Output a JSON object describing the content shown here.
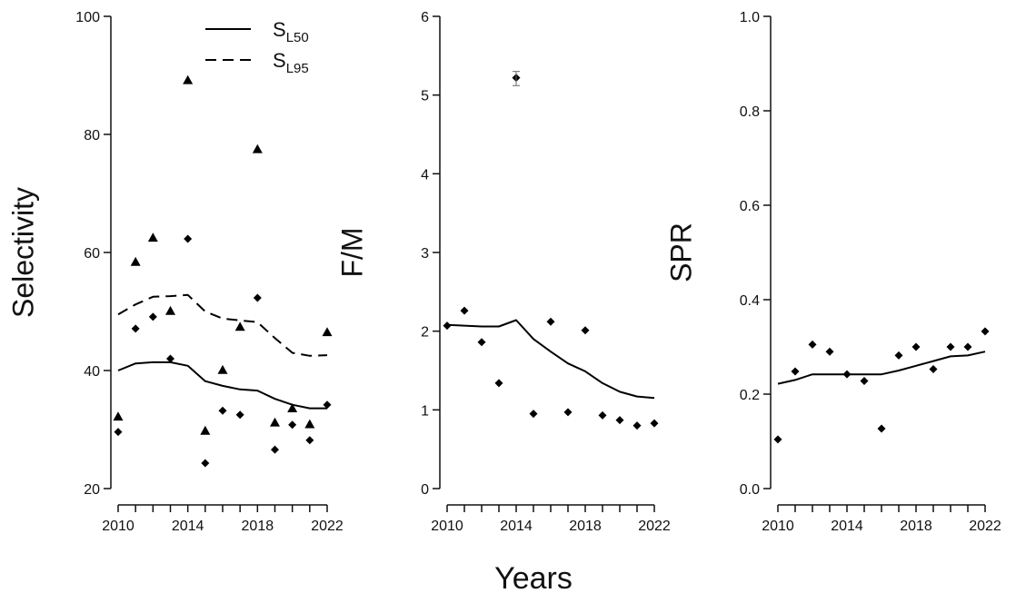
{
  "common": {
    "xlabel": "Years"
  },
  "chart_data": [
    {
      "type": "scatter",
      "ylabel": "Selectivity",
      "xlim": [
        2010,
        2022
      ],
      "ylim": [
        20,
        100
      ],
      "x_ticks": [
        2010,
        2014,
        2018,
        2022
      ],
      "y_ticks": [
        20,
        40,
        60,
        80,
        100
      ],
      "legend": [
        {
          "main": "S",
          "sub": "L50",
          "style": "solid"
        },
        {
          "main": "S",
          "sub": "L95",
          "style": "dashed"
        }
      ],
      "legend_position": "top",
      "series": [
        {
          "name": "SL50",
          "style": "solid-line",
          "x": [
            2010,
            2011,
            2012,
            2013,
            2014,
            2015,
            2016,
            2017,
            2018,
            2019,
            2020,
            2021,
            2022
          ],
          "y": [
            40.0,
            41.2,
            41.4,
            41.4,
            40.8,
            38.2,
            37.4,
            36.8,
            36.6,
            35.2,
            34.2,
            33.6,
            33.6
          ]
        },
        {
          "name": "SL95",
          "style": "dashed-line",
          "x": [
            2010,
            2011,
            2012,
            2013,
            2014,
            2015,
            2016,
            2017,
            2018,
            2019,
            2020,
            2021,
            2022
          ],
          "y": [
            49.5,
            51.2,
            52.5,
            52.6,
            52.8,
            50.0,
            48.8,
            48.5,
            48.2,
            45.5,
            43.0,
            42.5,
            42.6
          ]
        },
        {
          "name": "SL50 observed",
          "marker": "diamond",
          "x": [
            2010,
            2011,
            2012,
            2013,
            2014,
            2015,
            2016,
            2017,
            2018,
            2019,
            2020,
            2021,
            2022
          ],
          "y": [
            29.6,
            47.1,
            49.1,
            42.0,
            62.3,
            24.3,
            33.2,
            32.5,
            52.3,
            26.6,
            30.8,
            28.2,
            34.2
          ]
        },
        {
          "name": "SL95 observed",
          "marker": "triangle",
          "x": [
            2010,
            2011,
            2012,
            2013,
            2014,
            2015,
            2016,
            2017,
            2018,
            2019,
            2020,
            2021,
            2022
          ],
          "y": [
            32.2,
            58.4,
            62.5,
            50.1,
            89.2,
            29.8,
            40.1,
            47.4,
            77.5,
            31.2,
            33.6,
            30.9,
            46.5
          ]
        }
      ]
    },
    {
      "type": "scatter",
      "ylabel": "F/M",
      "xlim": [
        2010,
        2022
      ],
      "ylim": [
        0,
        6
      ],
      "x_ticks": [
        2010,
        2014,
        2018,
        2022
      ],
      "y_ticks": [
        0,
        1,
        2,
        3,
        4,
        5,
        6
      ],
      "series": [
        {
          "name": "F/M fitted",
          "style": "solid-line",
          "x": [
            2010,
            2011,
            2012,
            2013,
            2014,
            2015,
            2016,
            2017,
            2018,
            2019,
            2020,
            2021,
            2022
          ],
          "y": [
            2.08,
            2.07,
            2.06,
            2.06,
            2.14,
            1.9,
            1.74,
            1.59,
            1.49,
            1.34,
            1.23,
            1.17,
            1.15
          ]
        },
        {
          "name": "F/M observed",
          "marker": "diamond",
          "x": [
            2010,
            2011,
            2012,
            2013,
            2014,
            2015,
            2016,
            2017,
            2018,
            2019,
            2020,
            2021,
            2022
          ],
          "y": [
            2.07,
            2.26,
            1.86,
            1.34,
            5.22,
            0.95,
            2.12,
            0.97,
            2.01,
            0.93,
            0.87,
            0.8,
            0.83
          ]
        }
      ],
      "error_bars": [
        {
          "x": 2014,
          "y": 5.22,
          "low": 5.12,
          "high": 5.3
        }
      ]
    },
    {
      "type": "scatter",
      "ylabel": "SPR",
      "xlim": [
        2010,
        2022
      ],
      "ylim": [
        0.0,
        1.0
      ],
      "x_ticks": [
        2010,
        2014,
        2018,
        2022
      ],
      "y_ticks": [
        "0.0",
        "0.2",
        "0.4",
        "0.6",
        "0.8",
        "1.0"
      ],
      "series": [
        {
          "name": "SPR fitted",
          "style": "solid-line",
          "x": [
            2010,
            2011,
            2012,
            2013,
            2014,
            2015,
            2016,
            2017,
            2018,
            2019,
            2020,
            2021,
            2022
          ],
          "y": [
            0.222,
            0.23,
            0.242,
            0.242,
            0.242,
            0.242,
            0.242,
            0.25,
            0.26,
            0.27,
            0.28,
            0.282,
            0.29
          ]
        },
        {
          "name": "SPR observed",
          "marker": "diamond",
          "x": [
            2010,
            2011,
            2012,
            2013,
            2014,
            2015,
            2016,
            2017,
            2018,
            2019,
            2020,
            2021,
            2022
          ],
          "y": [
            0.104,
            0.248,
            0.305,
            0.29,
            0.242,
            0.228,
            0.127,
            0.282,
            0.3,
            0.253,
            0.3,
            0.3,
            0.333
          ]
        }
      ]
    }
  ]
}
